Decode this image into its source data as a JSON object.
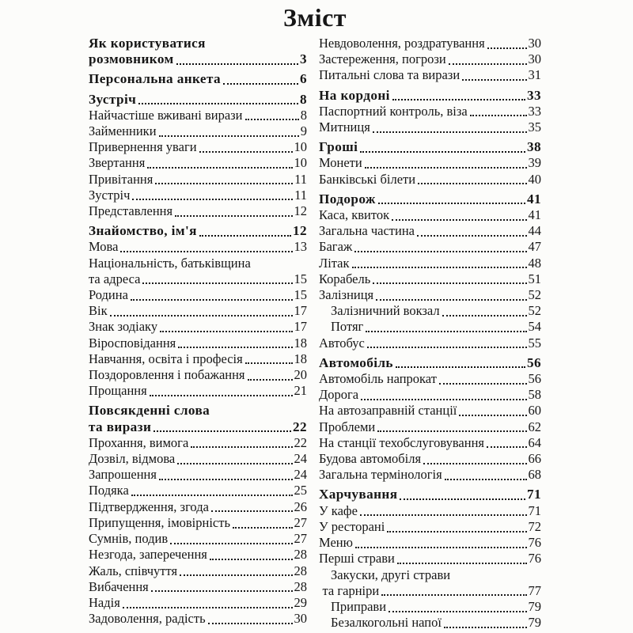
{
  "page": {
    "title": "Зміст"
  },
  "toc": {
    "columns": [
      {
        "name": "left",
        "entries": [
          {
            "text": "Як користуватися",
            "bold": true,
            "noLeader": true
          },
          {
            "text": "розмовником",
            "page": "3",
            "bold": true
          },
          {
            "text": "Персональна анкета",
            "page": "6",
            "bold": true,
            "gap": true
          },
          {
            "text": "Зустріч",
            "page": "8",
            "bold": true,
            "gap": true
          },
          {
            "text": "Найчастіше вживані вирази",
            "page": "8"
          },
          {
            "text": "Займенники",
            "page": "9"
          },
          {
            "text": "Привернення уваги",
            "page": "10"
          },
          {
            "text": "Звертання",
            "page": "10"
          },
          {
            "text": "Привітання",
            "page": "11"
          },
          {
            "text": "Зустріч",
            "page": "11"
          },
          {
            "text": "Представлення",
            "page": "12"
          },
          {
            "text": "Знайомство, ім'я",
            "page": "12",
            "bold": true,
            "gap": true
          },
          {
            "text": "Мова",
            "page": "13"
          },
          {
            "text": "Національність, батьківщина",
            "noLeader": true
          },
          {
            "text": "та адреса",
            "page": "15"
          },
          {
            "text": "Родина",
            "page": "15"
          },
          {
            "text": "Вік",
            "page": "17"
          },
          {
            "text": "Знак зодіаку",
            "page": "17"
          },
          {
            "text": "Віросповідання",
            "page": "18"
          },
          {
            "text": "Навчання, освіта і професія",
            "page": "18"
          },
          {
            "text": "Поздоровлення і побажання",
            "page": "20"
          },
          {
            "text": "Прощання",
            "page": "21"
          },
          {
            "text": "Повсякденні слова",
            "bold": true,
            "noLeader": true,
            "gap": true
          },
          {
            "text": "та вирази",
            "page": "22",
            "bold": true
          },
          {
            "text": "Прохання, вимога",
            "page": "22"
          },
          {
            "text": "Дозвіл, відмова",
            "page": "24"
          },
          {
            "text": "Запрошення",
            "page": "24"
          },
          {
            "text": "Подяка",
            "page": "25"
          },
          {
            "text": "Підтвердження, згода",
            "page": "26"
          },
          {
            "text": "Припущення, імовірність",
            "page": "27"
          },
          {
            "text": "Сумнів, подив",
            "page": "27"
          },
          {
            "text": "Незгода, заперечення",
            "page": "28"
          },
          {
            "text": "Жаль, співчуття",
            "page": "28"
          },
          {
            "text": "Вибачення",
            "page": "28"
          },
          {
            "text": "Надія",
            "page": "29"
          },
          {
            "text": "Задоволення, радість",
            "page": "30"
          }
        ]
      },
      {
        "name": "right",
        "entries": [
          {
            "text": "Невдоволення, роздратування",
            "page": "30"
          },
          {
            "text": "Застереження, погрози",
            "page": "30"
          },
          {
            "text": "Питальні слова та вирази",
            "page": "31"
          },
          {
            "text": "На кордоні",
            "page": "33",
            "bold": true,
            "gap": true
          },
          {
            "text": "Паспортний контроль, віза",
            "page": "33"
          },
          {
            "text": "Митниця",
            "page": "35"
          },
          {
            "text": "Гроші",
            "page": "38",
            "bold": true,
            "gap": true
          },
          {
            "text": "Монети",
            "page": "39"
          },
          {
            "text": "Банківські білети",
            "page": "40"
          },
          {
            "text": "Подорож",
            "page": "41",
            "bold": true,
            "gap": true
          },
          {
            "text": "Каса, квиток",
            "page": "41"
          },
          {
            "text": "Загальна частина",
            "page": "44"
          },
          {
            "text": "Багаж",
            "page": "47"
          },
          {
            "text": "Літак",
            "page": "48"
          },
          {
            "text": "Корабель",
            "page": "51"
          },
          {
            "text": "Залізниця",
            "page": "52"
          },
          {
            "text": "Залізничний вокзал",
            "page": "52",
            "indent": 1
          },
          {
            "text": "Потяг",
            "page": "54",
            "indent": 1
          },
          {
            "text": "Автобус",
            "page": "55"
          },
          {
            "text": "Автомобіль",
            "page": "56",
            "bold": true,
            "gap": true
          },
          {
            "text": "Автомобіль напрокат",
            "page": "56"
          },
          {
            "text": "Дорога",
            "page": "58"
          },
          {
            "text": "На автозаправній станції",
            "page": "60"
          },
          {
            "text": "Проблеми",
            "page": "62"
          },
          {
            "text": "На станції техобслуговування",
            "page": "64"
          },
          {
            "text": "Будова автомобіля",
            "page": "66"
          },
          {
            "text": "Загальна термінологія",
            "page": "68"
          },
          {
            "text": "Харчування",
            "page": "71",
            "bold": true,
            "gap": true
          },
          {
            "text": "У кафе",
            "page": "71"
          },
          {
            "text": "У ресторані",
            "page": "72"
          },
          {
            "text": "Меню",
            "page": "76"
          },
          {
            "text": "Перші страви",
            "page": "76"
          },
          {
            "text": "Закуски, другі страви",
            "noLeader": true,
            "indent": 1
          },
          {
            "text": "та гарніри",
            "page": "77",
            "indent": 0.3
          },
          {
            "text": "Приправи",
            "page": "79",
            "indent": 1
          },
          {
            "text": "Безалкогольні напої",
            "page": "79",
            "indent": 1
          }
        ]
      }
    ]
  }
}
